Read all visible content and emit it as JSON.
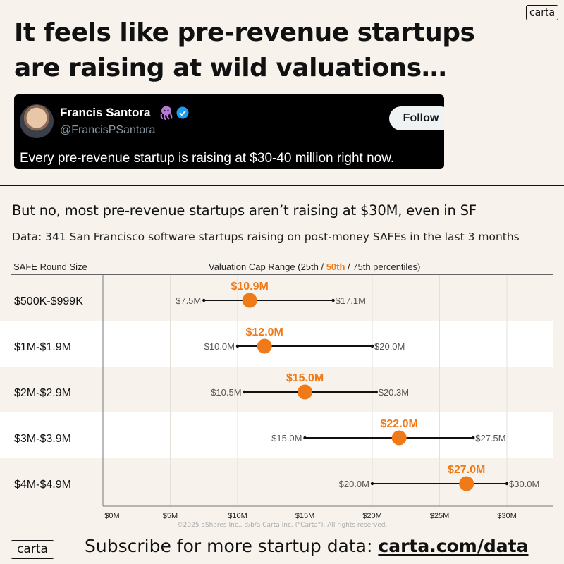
{
  "brand": {
    "logo": "carta"
  },
  "headline": "It feels like pre-revenue startups are raising at wild valuations…",
  "tweet": {
    "name": "Francis Santora",
    "handle": "@FrancisPSantora",
    "follow_label": "Follow",
    "text": "Every pre-revenue startup is raising at $30-40 million right now.",
    "icons": [
      "octopus-icon",
      "verified-badge-icon"
    ]
  },
  "section": {
    "title": "But no, most pre-revenue startups aren’t raising at $30M, even in SF",
    "data_note": "Data: 341 San Francisco software startups raising on post-money SAFEs in the last 3 months"
  },
  "table_header": {
    "size_col": "SAFE Round Size",
    "range_prefix": "Valuation Cap Range (25th / ",
    "range_highlight": "50th",
    "range_suffix": " / 75th percentiles)"
  },
  "colors": {
    "accent": "#f07a18",
    "dark": "#111111",
    "band": "#ffffff",
    "background": "#f7f3ec"
  },
  "chart_data": {
    "type": "range-dot",
    "x_ticks": [
      "$0M",
      "$5M",
      "$10M",
      "$15M",
      "$20M",
      "$25M",
      "$30M"
    ],
    "x_tick_values": [
      0,
      5,
      10,
      15,
      20,
      25,
      30
    ],
    "xlim": [
      0,
      33
    ],
    "grid": true,
    "rows": [
      {
        "category": "$500K-$999K",
        "p25": 7.5,
        "p50": 10.9,
        "p75": 17.1,
        "p25_label": "$7.5M",
        "p50_label": "$10.9M",
        "p75_label": "$17.1M"
      },
      {
        "category": "$1M-$1.9M",
        "p25": 10.0,
        "p50": 12.0,
        "p75": 20.0,
        "p25_label": "$10.0M",
        "p50_label": "$12.0M",
        "p75_label": "$20.0M"
      },
      {
        "category": "$2M-$2.9M",
        "p25": 10.5,
        "p50": 15.0,
        "p75": 20.3,
        "p25_label": "$10.5M",
        "p50_label": "$15.0M",
        "p75_label": "$20.3M"
      },
      {
        "category": "$3M-$3.9M",
        "p25": 15.0,
        "p50": 22.0,
        "p75": 27.5,
        "p25_label": "$15.0M",
        "p50_label": "$22.0M",
        "p75_label": "$27.5M"
      },
      {
        "category": "$4M-$4.9M",
        "p25": 20.0,
        "p50": 27.0,
        "p75": 30.0,
        "p25_label": "$20.0M",
        "p50_label": "$27.0M",
        "p75_label": "$30.0M"
      }
    ]
  },
  "copyright": "©2025 eShares Inc., d/b/a Carta Inc. (\"Carta\"). All rights reserved.",
  "footer": {
    "text": "Subscribe for more startup data: ",
    "link": "carta.com/data"
  }
}
